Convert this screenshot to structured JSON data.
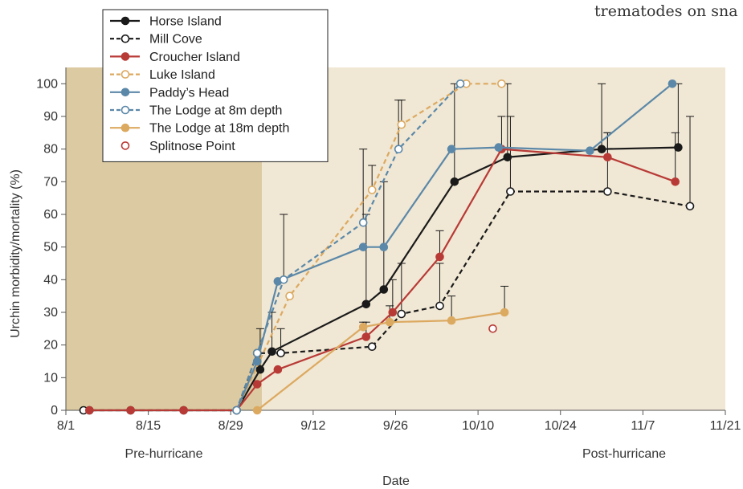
{
  "corner_text": "trematodes on sna",
  "chart_data": {
    "type": "line",
    "xlabel": "Date",
    "ylabel": "Urchin morbidity/mortality (%)",
    "x_tick_labels": [
      "8/1",
      "8/15",
      "8/29",
      "9/12",
      "9/26",
      "10/10",
      "10/24",
      "11/7",
      "11/21"
    ],
    "x_tick_days": [
      0,
      14,
      28,
      42,
      56,
      70,
      84,
      98,
      112
    ],
    "x_unit": "days after 8/1",
    "xlim_days": [
      0,
      112
    ],
    "ylim": [
      0,
      105
    ],
    "y_ticks": [
      0,
      10,
      20,
      30,
      40,
      50,
      60,
      70,
      80,
      90,
      100
    ],
    "grid": false,
    "legend_position": "top-left",
    "region_labels": [
      "Pre-hurricane",
      "Post-hurricane"
    ],
    "colors": {
      "pre_region": "#dccaa2",
      "post_region": "#f0e7d4",
      "black": "#1a1a1a",
      "red": "#b83a36",
      "orange": "#dca960",
      "blue": "#5b88a8"
    },
    "series": [
      {
        "name": "Horse Island",
        "color": "#1a1a1a",
        "dash": false,
        "marker": "filled",
        "line": true,
        "points": [
          [
            4,
            0
          ],
          [
            11,
            0
          ],
          [
            20,
            0
          ],
          [
            29,
            0
          ],
          [
            33,
            12.5
          ],
          [
            35,
            18
          ],
          [
            51,
            32.5
          ],
          [
            54,
            37
          ],
          [
            66,
            70
          ],
          [
            75,
            77.5
          ],
          [
            91,
            80
          ],
          [
            104,
            80.5
          ]
        ],
        "errors_up": [
          [
            33,
            25
          ],
          [
            35,
            30
          ],
          [
            51,
            60
          ],
          [
            54,
            70
          ],
          [
            66,
            100
          ],
          [
            75,
            100
          ],
          [
            91,
            100
          ],
          [
            104,
            100
          ]
        ]
      },
      {
        "name": "Mill Cove",
        "color": "#1a1a1a",
        "dash": true,
        "marker": "open",
        "line": true,
        "points": [
          [
            3,
            0
          ],
          [
            29,
            0
          ],
          [
            32.5,
            17.5
          ],
          [
            36.5,
            17.5
          ],
          [
            52,
            19.5
          ],
          [
            57,
            29.5
          ],
          [
            63.5,
            32
          ],
          [
            75.5,
            67
          ],
          [
            92,
            67
          ],
          [
            106,
            62.5
          ]
        ],
        "errors_up": [
          [
            36.5,
            25
          ],
          [
            57,
            45
          ],
          [
            63.5,
            45
          ],
          [
            75.5,
            90
          ],
          [
            92,
            85
          ],
          [
            106,
            90
          ]
        ]
      },
      {
        "name": "Croucher Island",
        "color": "#b83a36",
        "dash": false,
        "marker": "filled",
        "line": true,
        "points": [
          [
            4,
            0
          ],
          [
            11,
            0
          ],
          [
            20,
            0
          ],
          [
            29,
            0
          ],
          [
            32.5,
            8
          ],
          [
            36,
            12.5
          ],
          [
            51,
            22.5
          ],
          [
            55.5,
            30
          ],
          [
            63.5,
            47
          ],
          [
            74,
            80
          ],
          [
            92,
            77.5
          ],
          [
            103.5,
            70
          ]
        ],
        "errors_up": [
          [
            51,
            27
          ],
          [
            55.5,
            40
          ],
          [
            63.5,
            55
          ],
          [
            74,
            90
          ],
          [
            92,
            85
          ],
          [
            103.5,
            85
          ]
        ]
      },
      {
        "name": "Luke Island",
        "color": "#dca960",
        "dash": true,
        "marker": "open",
        "line": true,
        "points": [
          [
            29,
            0
          ],
          [
            38,
            35
          ],
          [
            52,
            67.5
          ],
          [
            57,
            87.5
          ],
          [
            68,
            100
          ],
          [
            74,
            100
          ]
        ],
        "errors_up": [
          [
            52,
            75
          ],
          [
            57,
            95
          ]
        ]
      },
      {
        "name": "Paddy’s Head",
        "color": "#5b88a8",
        "dash": false,
        "marker": "filled",
        "line": true,
        "points": [
          [
            29,
            0
          ],
          [
            32.5,
            15
          ],
          [
            36,
            39.5
          ],
          [
            50.5,
            50
          ],
          [
            54,
            50
          ],
          [
            65.5,
            80
          ],
          [
            73.5,
            80.5
          ],
          [
            89,
            79.5
          ],
          [
            103,
            100
          ]
        ],
        "errors_up": []
      },
      {
        "name": "The Lodge at 8m depth",
        "color": "#5b88a8",
        "dash": true,
        "marker": "open",
        "line": true,
        "points": [
          [
            29,
            0
          ],
          [
            32.5,
            17.5
          ],
          [
            37,
            40
          ],
          [
            50.5,
            57.5
          ],
          [
            56.5,
            80
          ],
          [
            67,
            100
          ]
        ],
        "errors_up": [
          [
            37,
            60
          ],
          [
            50.5,
            80
          ],
          [
            56.5,
            95
          ]
        ]
      },
      {
        "name": "The Lodge at 18m depth",
        "color": "#dca960",
        "dash": false,
        "marker": "filled",
        "line": true,
        "points": [
          [
            32.5,
            0
          ],
          [
            50.5,
            25.5
          ],
          [
            55,
            27
          ],
          [
            65.5,
            27.5
          ],
          [
            74.5,
            30
          ]
        ],
        "errors_up": [
          [
            50.5,
            27
          ],
          [
            55,
            32
          ],
          [
            65.5,
            35
          ],
          [
            74.5,
            38
          ]
        ]
      },
      {
        "name": "Splitnose Point",
        "color": "#b83a36",
        "dash": false,
        "marker": "open",
        "line": false,
        "points": [
          [
            72.5,
            25
          ]
        ],
        "errors_up": []
      }
    ]
  }
}
